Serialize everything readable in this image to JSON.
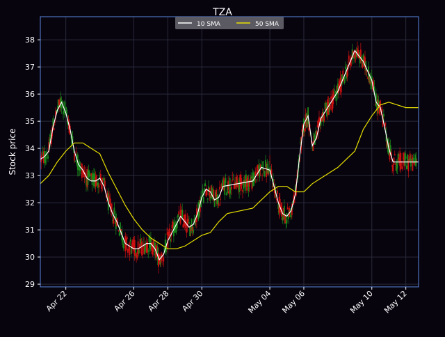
{
  "chart_data": {
    "type": "candlestick",
    "title": "TZA",
    "ylabel": "Stock price",
    "xlabel": "",
    "ylim": [
      28.9,
      38.85
    ],
    "yticks": [
      29,
      30,
      31,
      32,
      33,
      34,
      35,
      36,
      37,
      38
    ],
    "xlim": [
      "Apr 20 12:00",
      "May 12 18:00"
    ],
    "xtick_labels": [
      "Apr 22",
      "Apr 26",
      "Apr 28",
      "Apr 30",
      "May 04",
      "May 06",
      "May 10",
      "May 12"
    ],
    "grid": true,
    "legend_position": "top-center",
    "candle_colors": {
      "up": "#1a8a1a",
      "down": "#cc1010"
    },
    "series": [
      {
        "name": "10 SMA",
        "color": "#ffffff",
        "x": [
          "Apr 20 12:00",
          "Apr 20 18:00",
          "Apr 21 00:00",
          "Apr 21 06:00",
          "Apr 21 12:00",
          "Apr 21 18:00",
          "Apr 22 00:00",
          "Apr 22 06:00",
          "Apr 22 12:00",
          "Apr 22 18:00",
          "Apr 23 00:00",
          "Apr 23 06:00",
          "Apr 23 12:00",
          "Apr 23 18:00",
          "Apr 24 00:00",
          "Apr 24 06:00",
          "Apr 24 12:00",
          "Apr 24 18:00",
          "Apr 25 00:00",
          "Apr 25 06:00",
          "Apr 25 12:00",
          "Apr 25 18:00",
          "Apr 26 00:00",
          "Apr 26 06:00",
          "Apr 26 12:00",
          "Apr 26 18:00",
          "Apr 27 00:00",
          "Apr 27 06:00",
          "Apr 27 12:00",
          "Apr 27 18:00",
          "Apr 28 00:00",
          "Apr 28 06:00",
          "Apr 28 12:00",
          "Apr 28 18:00",
          "Apr 29 00:00",
          "Apr 29 06:00",
          "Apr 29 12:00",
          "Apr 29 18:00",
          "Apr 30 00:00",
          "Apr 30 06:00",
          "Apr 30 12:00",
          "Apr 30 18:00",
          "May 01 00:00",
          "May 01 06:00",
          "May 03 00:00",
          "May 03 12:00",
          "May 04 00:00",
          "May 04 06:00",
          "May 04 12:00",
          "May 04 18:00",
          "May 05 00:00",
          "May 05 06:00",
          "May 05 12:00",
          "May 05 18:00",
          "May 06 00:00",
          "May 06 06:00",
          "May 06 12:00",
          "May 06 18:00",
          "May 07 00:00",
          "May 08 00:00",
          "May 09 00:00",
          "May 09 12:00",
          "May 10 00:00",
          "May 10 06:00",
          "May 10 12:00",
          "May 10 18:00",
          "May 11 00:00",
          "May 11 06:00",
          "May 11 12:00",
          "May 11 18:00",
          "May 12 00:00",
          "May 12 06:00",
          "May 12 12:00",
          "May 12 18:00"
        ],
        "values": [
          33.6,
          33.7,
          33.9,
          34.8,
          35.4,
          35.7,
          35.3,
          34.7,
          33.9,
          33.4,
          33.2,
          32.9,
          32.8,
          32.8,
          32.9,
          32.6,
          32.0,
          31.6,
          31.3,
          30.9,
          30.5,
          30.4,
          30.3,
          30.3,
          30.4,
          30.5,
          30.5,
          30.3,
          29.9,
          30.1,
          30.6,
          30.9,
          31.2,
          31.5,
          31.3,
          31.1,
          31.2,
          31.6,
          32.2,
          32.5,
          32.4,
          32.1,
          32.2,
          32.6,
          32.8,
          33.3,
          33.2,
          32.6,
          32.0,
          31.6,
          31.5,
          31.7,
          32.3,
          33.7,
          34.9,
          35.2,
          34.1,
          34.4,
          35.1,
          36.1,
          37.6,
          37.2,
          36.5,
          35.7,
          35.5,
          34.8,
          34.0,
          33.5,
          33.5,
          33.5,
          33.5,
          33.5,
          33.5,
          33.5
        ]
      },
      {
        "name": "50 SMA",
        "color": "#e8e000",
        "x": [
          "Apr 20 12:00",
          "Apr 21 00:00",
          "Apr 21 12:00",
          "Apr 22 00:00",
          "Apr 22 12:00",
          "Apr 23 00:00",
          "Apr 23 12:00",
          "Apr 24 00:00",
          "Apr 24 12:00",
          "Apr 25 00:00",
          "Apr 25 12:00",
          "Apr 26 00:00",
          "Apr 26 12:00",
          "Apr 27 00:00",
          "Apr 27 12:00",
          "Apr 28 00:00",
          "Apr 28 12:00",
          "Apr 29 00:00",
          "Apr 29 12:00",
          "Apr 30 00:00",
          "Apr 30 12:00",
          "May 01 00:00",
          "May 01 12:00",
          "May 03 00:00",
          "May 03 12:00",
          "May 04 00:00",
          "May 04 12:00",
          "May 05 00:00",
          "May 05 12:00",
          "May 06 00:00",
          "May 06 12:00",
          "May 07 00:00",
          "May 08 00:00",
          "May 09 00:00",
          "May 09 12:00",
          "May 10 00:00",
          "May 10 12:00",
          "May 11 00:00",
          "May 11 12:00",
          "May 12 00:00",
          "May 12 12:00",
          "May 12 18:00"
        ],
        "values": [
          32.7,
          33.0,
          33.5,
          33.9,
          34.2,
          34.2,
          34.0,
          33.8,
          33.1,
          32.5,
          31.9,
          31.4,
          31.0,
          30.7,
          30.5,
          30.3,
          30.3,
          30.4,
          30.6,
          30.8,
          30.9,
          31.3,
          31.6,
          31.8,
          32.1,
          32.4,
          32.6,
          32.6,
          32.4,
          32.4,
          32.7,
          32.9,
          33.3,
          33.9,
          34.7,
          35.2,
          35.6,
          35.7,
          35.6,
          35.5,
          35.5,
          35.5
        ]
      }
    ]
  }
}
